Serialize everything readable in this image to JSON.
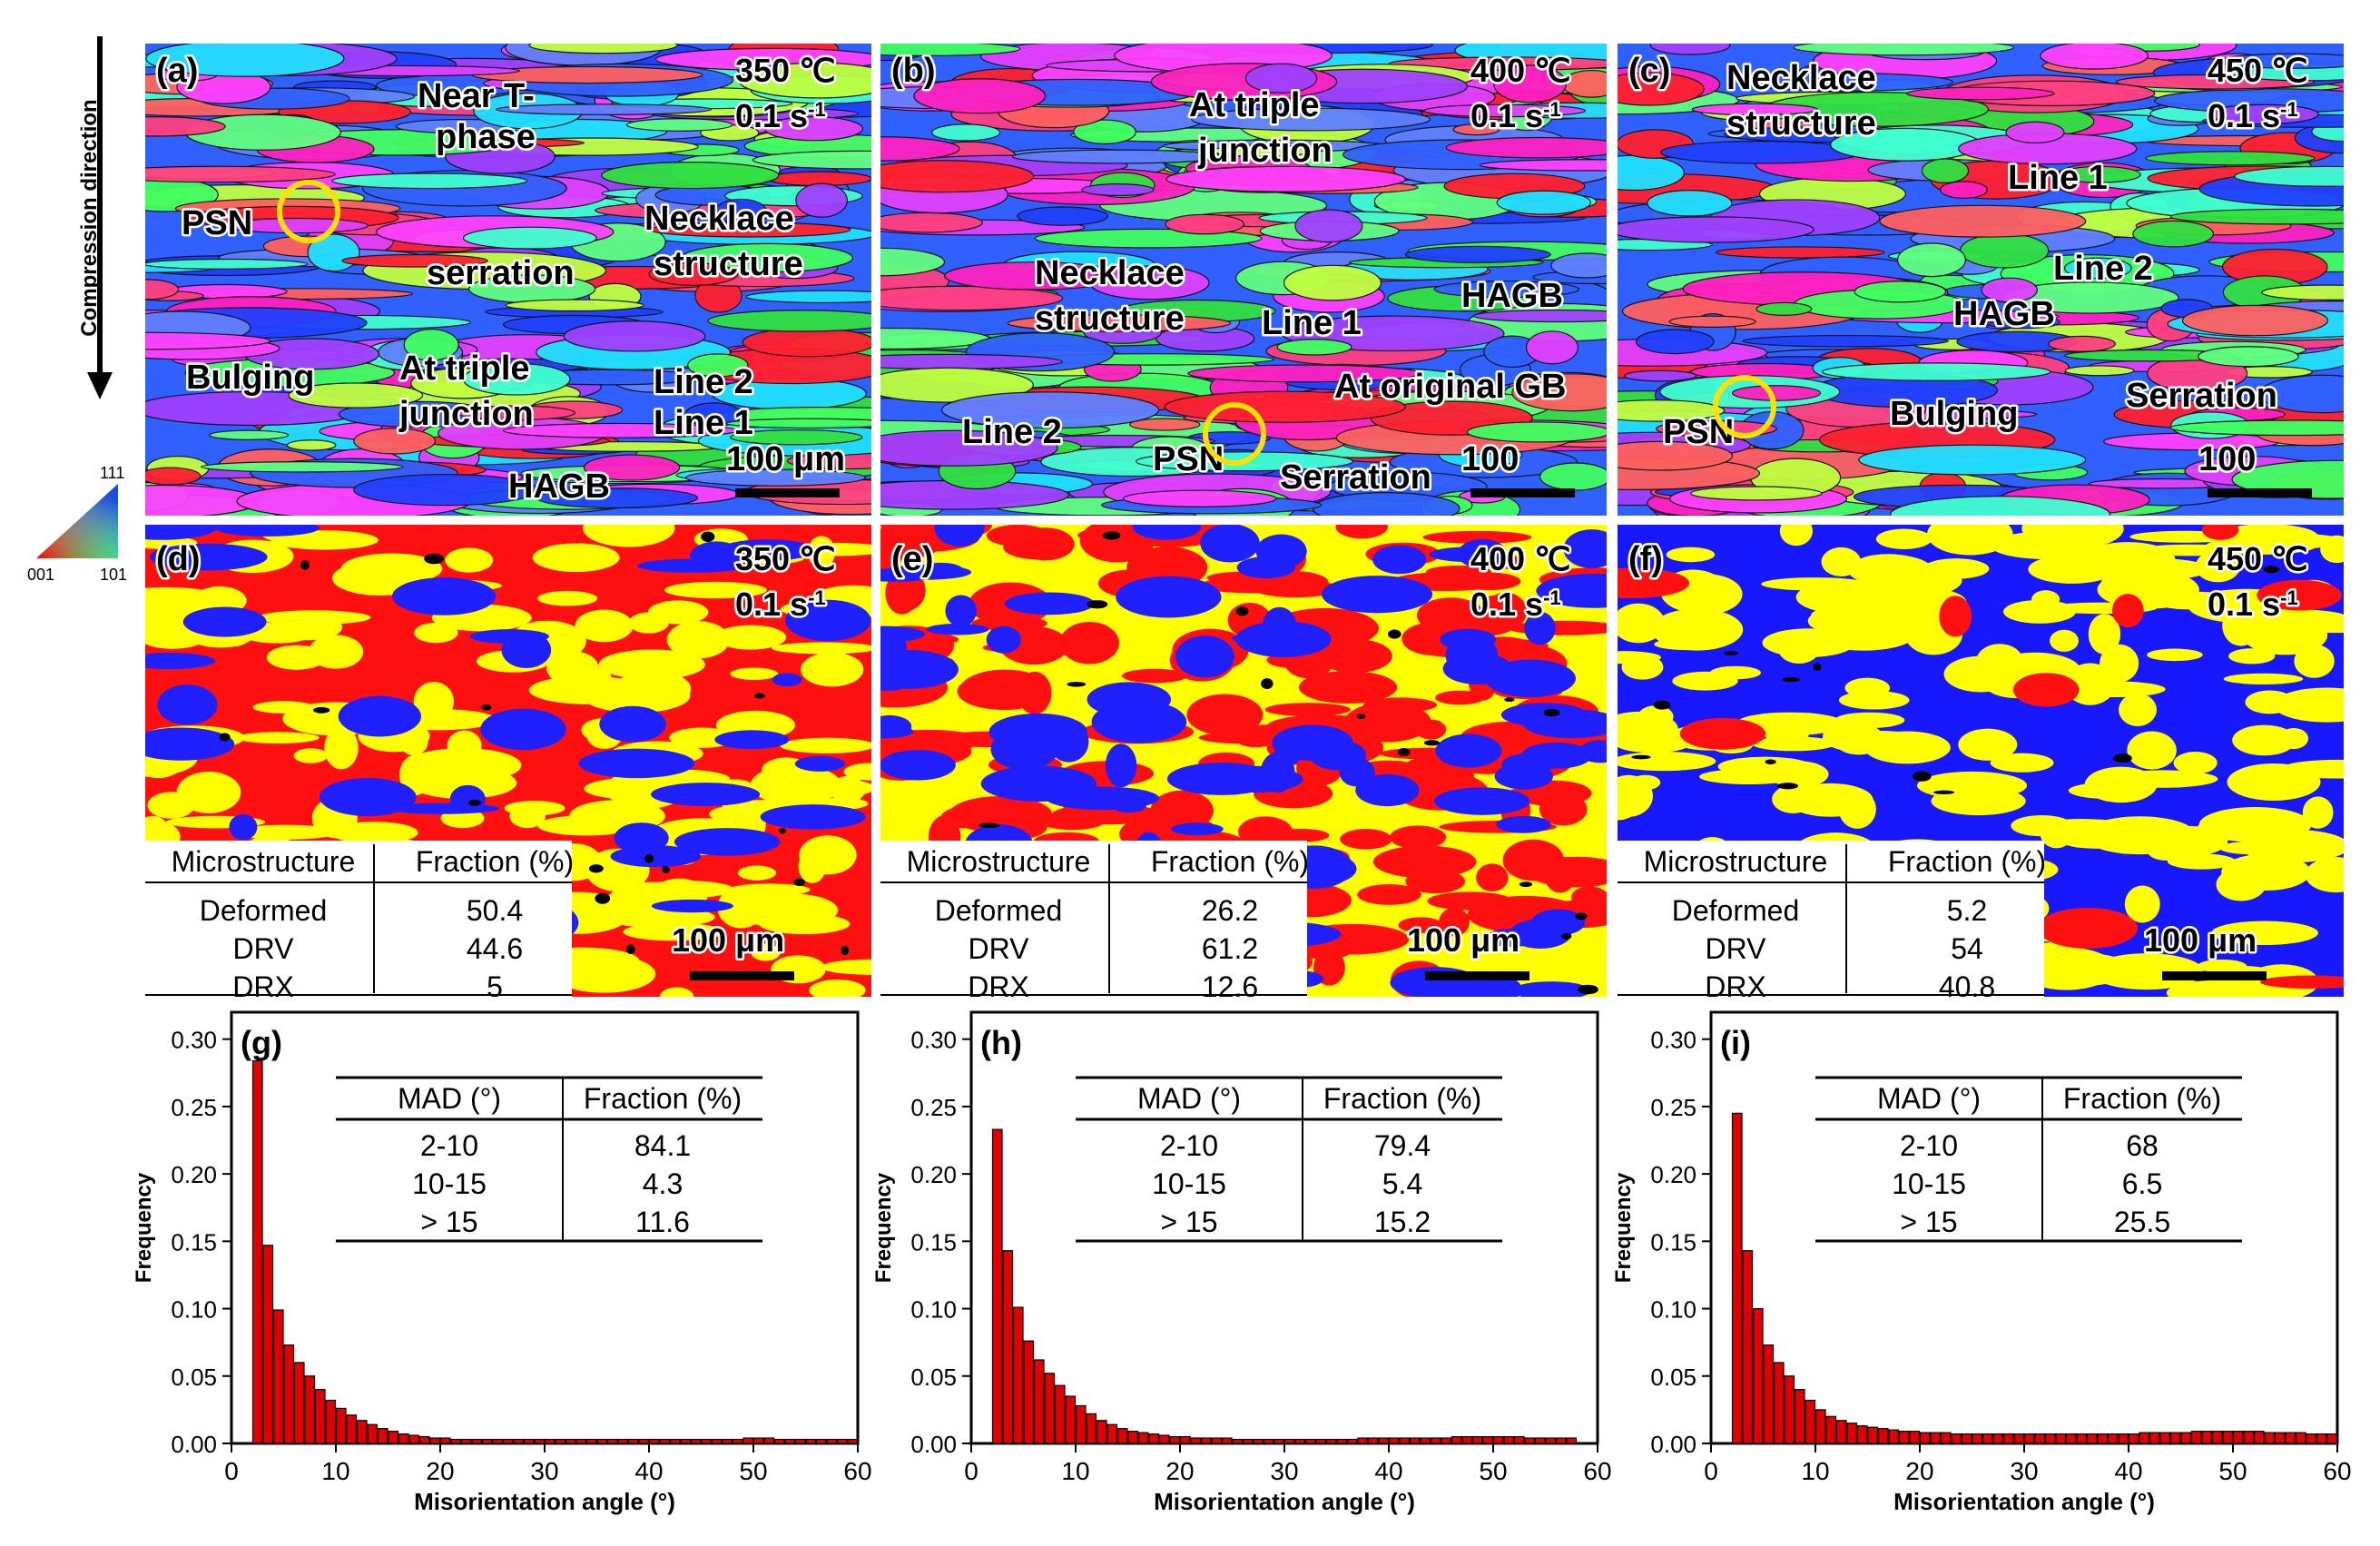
{
  "compression_label": "Compression direction",
  "legend": {
    "top": "111",
    "left": "001",
    "right": "101"
  },
  "ipf_panels": [
    {
      "label": "(a)",
      "temp": "350 ℃",
      "rate": "0.1 s",
      "rate_exp": "-1",
      "scale": "100 μm",
      "annotations": [
        "Near T-",
        "phase",
        "PSN",
        "serration",
        "Necklace",
        "structure",
        "Bulging",
        "At triple",
        "junction",
        "Line 2",
        "Line 1",
        "HAGB"
      ]
    },
    {
      "label": "(b)",
      "temp": "400 ℃",
      "rate": "0.1 s",
      "rate_exp": "-1",
      "scale": "100",
      "annotations": [
        "At triple",
        "junction",
        "HAGB",
        "Necklace",
        "structure",
        "Line 1",
        "At original GB",
        "Line 2",
        "PSN",
        "Serration"
      ]
    },
    {
      "label": "(c)",
      "temp": "450 ℃",
      "rate": "0.1 s",
      "rate_exp": "-1",
      "scale": "100",
      "annotations": [
        "Necklace",
        "structure",
        "Line 1",
        "Line 2",
        "HAGB",
        "Serration",
        "PSN",
        "Bulging"
      ]
    }
  ],
  "map_panels": [
    {
      "label": "(d)",
      "temp": "350 ℃",
      "rate": "0.1 s",
      "rate_exp": "-1",
      "scale": "100 μm",
      "table": {
        "headers": [
          "Microstructure",
          "Fraction (%)"
        ],
        "rows": [
          [
            "Deformed",
            "50.4"
          ],
          [
            "DRV",
            "44.6"
          ],
          [
            "DRX",
            "5"
          ]
        ]
      }
    },
    {
      "label": "(e)",
      "temp": "400 ℃",
      "rate": "0.1 s",
      "rate_exp": "-1",
      "scale": "100 μm",
      "table": {
        "headers": [
          "Microstructure",
          "Fraction (%)"
        ],
        "rows": [
          [
            "Deformed",
            "26.2"
          ],
          [
            "DRV",
            "61.2"
          ],
          [
            "DRX",
            "12.6"
          ]
        ]
      }
    },
    {
      "label": "(f)",
      "temp": "450 ℃",
      "rate": "0.1 s",
      "rate_exp": "-1",
      "scale": "100 μm",
      "table": {
        "headers": [
          "Microstructure",
          "Fraction (%)"
        ],
        "rows": [
          [
            "Deformed",
            "5.2"
          ],
          [
            "DRV",
            "54"
          ],
          [
            "DRX",
            "40.8"
          ]
        ]
      }
    }
  ],
  "chart_data": [
    {
      "type": "bar",
      "label": "(g)",
      "xlabel": "Misorientation angle (°)",
      "ylabel": "Frequency",
      "xlim": [
        0,
        60
      ],
      "ylim": [
        0,
        0.32
      ],
      "xticks": [
        0,
        10,
        20,
        30,
        40,
        50,
        60
      ],
      "yticks": [
        0.0,
        0.05,
        0.1,
        0.15,
        0.2,
        0.25,
        0.3
      ],
      "bin_start": 2,
      "bin_width": 1,
      "values": [
        0.284,
        0.147,
        0.099,
        0.073,
        0.06,
        0.05,
        0.04,
        0.032,
        0.026,
        0.021,
        0.017,
        0.014,
        0.011,
        0.009,
        0.007,
        0.006,
        0.005,
        0.004,
        0.004,
        0.003,
        0.003,
        0.003,
        0.003,
        0.003,
        0.003,
        0.003,
        0.003,
        0.003,
        0.003,
        0.003,
        0.003,
        0.003,
        0.003,
        0.003,
        0.003,
        0.003,
        0.003,
        0.003,
        0.003,
        0.003,
        0.003,
        0.003,
        0.003,
        0.003,
        0.003,
        0.003,
        0.003,
        0.004,
        0.004,
        0.004,
        0.003,
        0.003,
        0.003,
        0.003,
        0.003,
        0.003,
        0.003,
        0.003
      ],
      "inset_table": {
        "headers": [
          "MAD (°)",
          "Fraction (%)"
        ],
        "rows": [
          [
            "2-10",
            "84.1"
          ],
          [
            "10-15",
            "4.3"
          ],
          [
            "> 15",
            "11.6"
          ]
        ]
      }
    },
    {
      "type": "bar",
      "label": "(h)",
      "xlabel": "Misorientation angle (°)",
      "ylabel": "Frequency",
      "xlim": [
        0,
        60
      ],
      "ylim": [
        0,
        0.32
      ],
      "xticks": [
        0,
        10,
        20,
        30,
        40,
        50,
        60
      ],
      "yticks": [
        0.0,
        0.05,
        0.1,
        0.15,
        0.2,
        0.25,
        0.3
      ],
      "bin_start": 2,
      "bin_width": 1,
      "values": [
        0.233,
        0.143,
        0.101,
        0.076,
        0.062,
        0.052,
        0.043,
        0.035,
        0.028,
        0.022,
        0.017,
        0.014,
        0.011,
        0.009,
        0.008,
        0.007,
        0.006,
        0.005,
        0.005,
        0.004,
        0.004,
        0.004,
        0.004,
        0.003,
        0.003,
        0.003,
        0.003,
        0.003,
        0.003,
        0.003,
        0.003,
        0.003,
        0.003,
        0.003,
        0.003,
        0.004,
        0.004,
        0.004,
        0.004,
        0.004,
        0.004,
        0.004,
        0.004,
        0.004,
        0.005,
        0.005,
        0.005,
        0.005,
        0.005,
        0.005,
        0.005,
        0.004,
        0.004,
        0.004,
        0.004,
        0.004
      ],
      "inset_table": {
        "headers": [
          "MAD (°)",
          "Fraction (%)"
        ],
        "rows": [
          [
            "2-10",
            "79.4"
          ],
          [
            "10-15",
            "5.4"
          ],
          [
            "> 15",
            "15.2"
          ]
        ]
      }
    },
    {
      "type": "bar",
      "label": "(i)",
      "xlabel": "Misorientation angle (°)",
      "ylabel": "Frequency",
      "xlim": [
        0,
        60
      ],
      "ylim": [
        0,
        0.32
      ],
      "xticks": [
        0,
        10,
        20,
        30,
        40,
        50,
        60
      ],
      "yticks": [
        0.0,
        0.05,
        0.1,
        0.15,
        0.2,
        0.25,
        0.3
      ],
      "bin_start": 2,
      "bin_width": 1,
      "values": [
        0.245,
        0.143,
        0.1,
        0.073,
        0.06,
        0.05,
        0.04,
        0.032,
        0.025,
        0.02,
        0.017,
        0.015,
        0.013,
        0.012,
        0.011,
        0.01,
        0.009,
        0.009,
        0.008,
        0.008,
        0.008,
        0.007,
        0.007,
        0.007,
        0.007,
        0.007,
        0.007,
        0.007,
        0.007,
        0.007,
        0.007,
        0.007,
        0.007,
        0.007,
        0.007,
        0.007,
        0.007,
        0.007,
        0.007,
        0.008,
        0.008,
        0.008,
        0.008,
        0.008,
        0.009,
        0.009,
        0.009,
        0.009,
        0.009,
        0.009,
        0.009,
        0.008,
        0.008,
        0.008,
        0.008,
        0.007,
        0.007,
        0.007
      ],
      "inset_table": {
        "headers": [
          "MAD (°)",
          "Fraction (%)"
        ],
        "rows": [
          [
            "2-10",
            "68"
          ],
          [
            "10-15",
            "6.5"
          ],
          [
            "> 15",
            "25.5"
          ]
        ]
      }
    }
  ]
}
